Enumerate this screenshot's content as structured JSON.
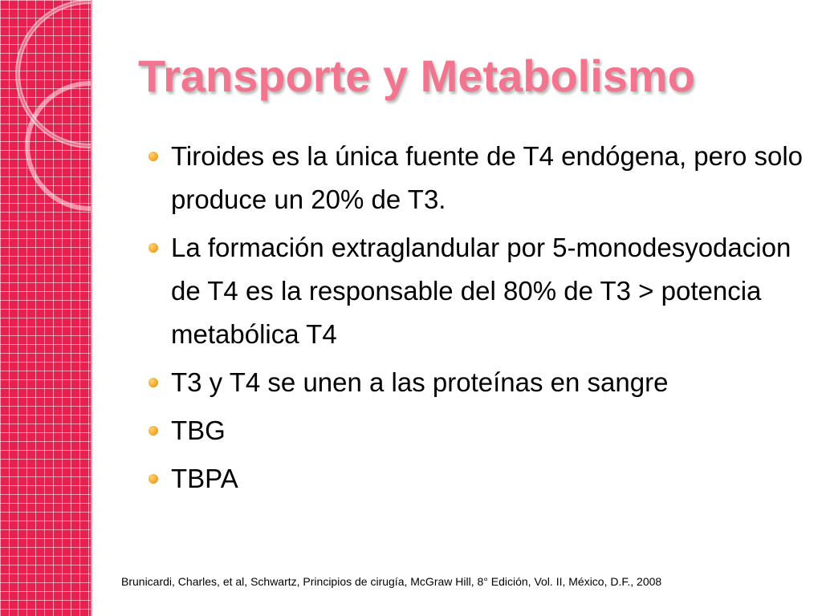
{
  "slide": {
    "title": "Transporte y Metabolismo",
    "bullets": [
      "Tiroides es la única fuente de T4 endógena, pero solo produce un 20% de T3.",
      "La formación extraglandular por 5-monodesyodacion de T4 es la responsable del 80% de T3 > potencia metabólica T4",
      "T3 y T4 se unen a las proteínas en sangre",
      "TBG",
      "TBPA"
    ],
    "citation": "Brunicardi, Charles, et al, Schwartz, Principios de cirugía, McGraw Hill, 8° Edición, Vol. II, México, D.F., 2008"
  },
  "colors": {
    "sidebar": "#e8204f",
    "title": "#f2758f",
    "bullet_dot": "#f4a321"
  }
}
